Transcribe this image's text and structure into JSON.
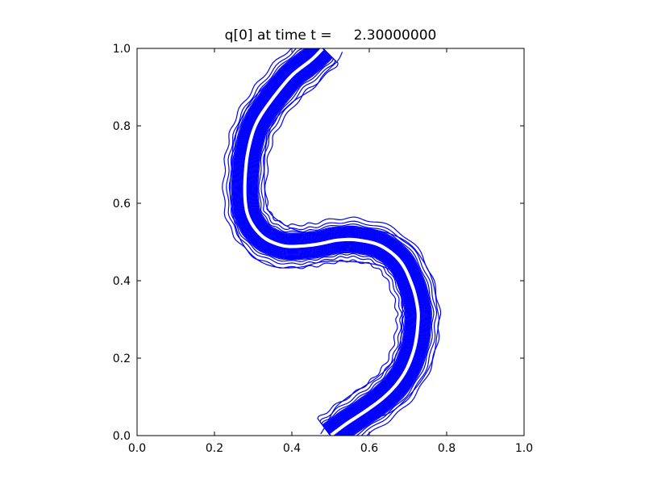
{
  "chart_data": {
    "type": "contour",
    "title": "q[0] at time t =     2.30000000",
    "xlim": [
      0,
      1
    ],
    "ylim": [
      0,
      1
    ],
    "xticks": [
      "0.0",
      "0.2",
      "0.4",
      "0.6",
      "0.8",
      "1.0"
    ],
    "yticks": [
      "0.0",
      "0.2",
      "0.4",
      "0.6",
      "0.8",
      "1.0"
    ],
    "line_color": "#0000ff",
    "grid": false,
    "contour_levels": 18,
    "outer_contour": {
      "left_side": [
        [
          0.475,
          0.005
        ],
        [
          0.49,
          0.03
        ],
        [
          0.505,
          0.06
        ],
        [
          0.52,
          0.08
        ],
        [
          0.56,
          0.11
        ],
        [
          0.62,
          0.15
        ],
        [
          0.66,
          0.19
        ],
        [
          0.68,
          0.24
        ],
        [
          0.685,
          0.3
        ],
        [
          0.685,
          0.35
        ],
        [
          0.67,
          0.4
        ],
        [
          0.65,
          0.43
        ],
        [
          0.6,
          0.445
        ],
        [
          0.54,
          0.45
        ],
        [
          0.49,
          0.45
        ],
        [
          0.46,
          0.445
        ],
        [
          0.42,
          0.435
        ],
        [
          0.36,
          0.435
        ],
        [
          0.31,
          0.455
        ],
        [
          0.27,
          0.5
        ],
        [
          0.25,
          0.56
        ],
        [
          0.24,
          0.63
        ],
        [
          0.245,
          0.7
        ],
        [
          0.25,
          0.76
        ],
        [
          0.27,
          0.82
        ],
        [
          0.3,
          0.87
        ],
        [
          0.35,
          0.92
        ],
        [
          0.4,
          0.955
        ],
        [
          0.44,
          0.975
        ],
        [
          0.46,
          0.99
        ]
      ],
      "right_side": [
        [
          0.525,
          0.005
        ],
        [
          0.56,
          0.02
        ],
        [
          0.6,
          0.04
        ],
        [
          0.655,
          0.06
        ],
        [
          0.7,
          0.1
        ],
        [
          0.74,
          0.15
        ],
        [
          0.765,
          0.2
        ],
        [
          0.775,
          0.26
        ],
        [
          0.78,
          0.3
        ],
        [
          0.775,
          0.33
        ],
        [
          0.77,
          0.37
        ],
        [
          0.76,
          0.41
        ],
        [
          0.74,
          0.45
        ],
        [
          0.71,
          0.49
        ],
        [
          0.67,
          0.515
        ],
        [
          0.62,
          0.53
        ],
        [
          0.56,
          0.535
        ],
        [
          0.52,
          0.525
        ],
        [
          0.49,
          0.52
        ],
        [
          0.43,
          0.525
        ],
        [
          0.38,
          0.545
        ],
        [
          0.34,
          0.58
        ],
        [
          0.33,
          0.63
        ],
        [
          0.33,
          0.72
        ],
        [
          0.34,
          0.78
        ],
        [
          0.36,
          0.82
        ],
        [
          0.4,
          0.86
        ],
        [
          0.43,
          0.88
        ],
        [
          0.46,
          0.9
        ],
        [
          0.48,
          0.93
        ],
        [
          0.5,
          0.95
        ],
        [
          0.52,
          0.97
        ],
        [
          0.53,
          0.99
        ]
      ]
    },
    "spine": [
      [
        0.5,
        0.0
      ],
      [
        0.54,
        0.03
      ],
      [
        0.6,
        0.07
      ],
      [
        0.65,
        0.11
      ],
      [
        0.69,
        0.16
      ],
      [
        0.715,
        0.22
      ],
      [
        0.725,
        0.28
      ],
      [
        0.725,
        0.33
      ],
      [
        0.71,
        0.39
      ],
      [
        0.68,
        0.45
      ],
      [
        0.63,
        0.49
      ],
      [
        0.57,
        0.505
      ],
      [
        0.52,
        0.505
      ],
      [
        0.47,
        0.495
      ],
      [
        0.43,
        0.49
      ],
      [
        0.38,
        0.49
      ],
      [
        0.33,
        0.51
      ],
      [
        0.295,
        0.55
      ],
      [
        0.28,
        0.6
      ],
      [
        0.28,
        0.68
      ],
      [
        0.29,
        0.75
      ],
      [
        0.31,
        0.81
      ],
      [
        0.35,
        0.87
      ],
      [
        0.4,
        0.93
      ],
      [
        0.45,
        0.97
      ],
      [
        0.48,
        1.0
      ]
    ],
    "contour_widths": [
      0.0055,
      0.0075,
      0.0095,
      0.0115,
      0.0135,
      0.0155,
      0.0175,
      0.0195,
      0.0215,
      0.0235,
      0.0255,
      0.0275,
      0.0295,
      0.0315,
      0.034,
      0.038,
      0.045,
      0.055
    ]
  }
}
